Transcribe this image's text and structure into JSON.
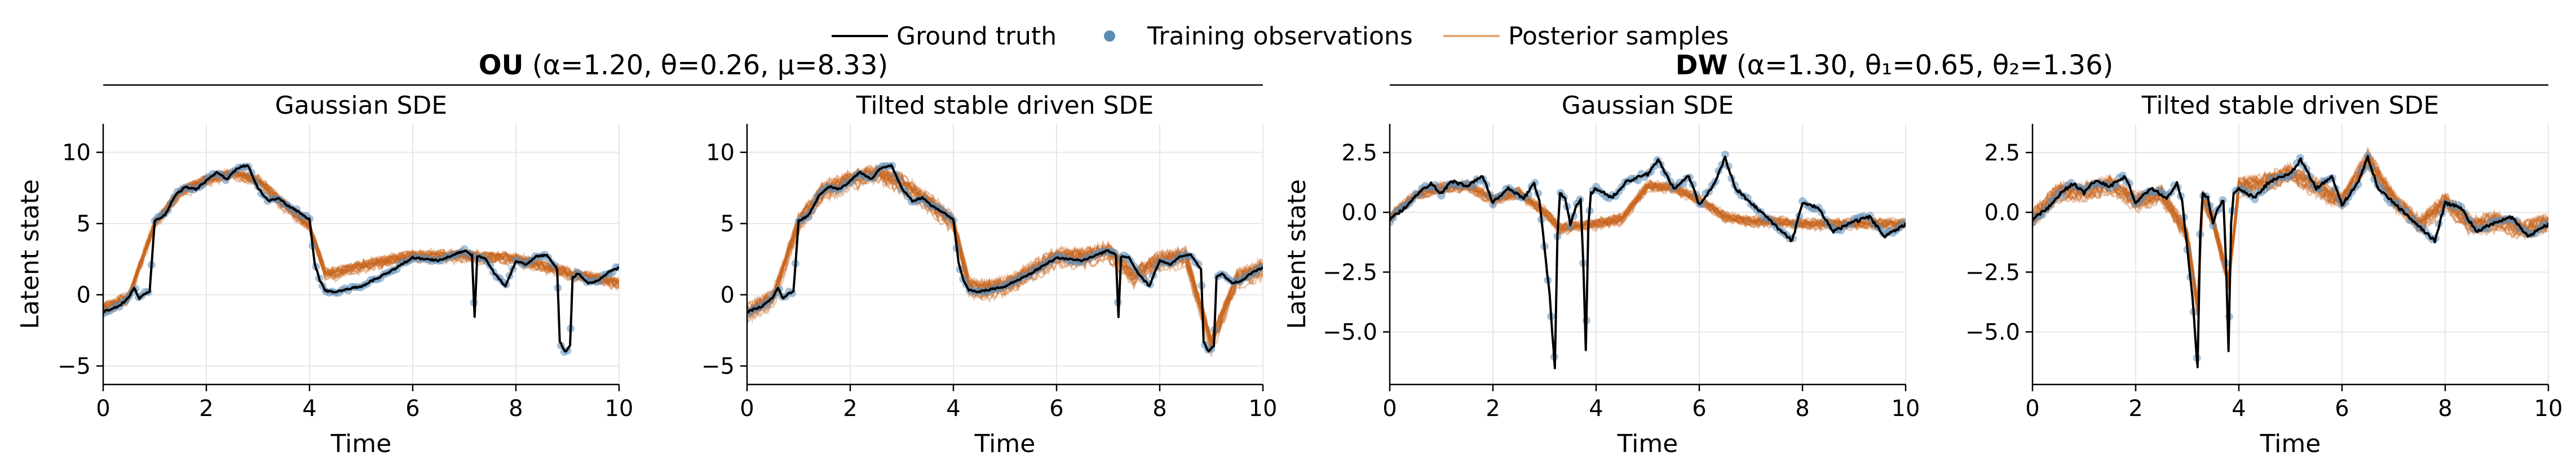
{
  "legend": {
    "ground_truth": "Ground truth",
    "observations": "Training observations",
    "posterior": "Posterior samples"
  },
  "colors": {
    "ground_truth": "#000000",
    "observations": "#5b8db8",
    "posterior": "#c8641e",
    "grid": "#e6e6e6"
  },
  "groups": [
    {
      "bold": "OU",
      "rest": " (α=1.20, θ=0.26, μ=8.33)"
    },
    {
      "bold": "DW",
      "rest": " (α=1.30, θ₁=0.65, θ₂=1.36)"
    }
  ],
  "chart_data": [
    {
      "type": "line",
      "title": "Gaussian SDE",
      "xlabel": "Time",
      "ylabel": "Latent state",
      "xlim": [
        0,
        10
      ],
      "ylim": [
        -6.3,
        12
      ],
      "xticks": [
        0,
        2,
        4,
        6,
        8,
        10
      ],
      "yticks": [
        -5,
        0,
        5,
        10
      ],
      "ytick_labels": [
        "−5",
        "0",
        "5",
        "10"
      ],
      "grid": true,
      "ground_truth": {
        "x": [
          0,
          0.3,
          0.5,
          0.6,
          0.7,
          0.8,
          0.9,
          1.0,
          1.2,
          1.4,
          1.6,
          1.8,
          2.0,
          2.2,
          2.4,
          2.6,
          2.8,
          3.0,
          3.2,
          3.4,
          3.6,
          3.8,
          4.0,
          4.1,
          4.2,
          4.3,
          4.5,
          5.0,
          5.5,
          6.0,
          6.5,
          7.0,
          7.15,
          7.2,
          7.25,
          7.4,
          7.6,
          7.8,
          8.0,
          8.2,
          8.4,
          8.6,
          8.8,
          8.85,
          8.95,
          9.05,
          9.1,
          9.2,
          9.4,
          9.6,
          9.8,
          10.0
        ],
        "y": [
          -1.2,
          -0.8,
          -0.2,
          0.5,
          -0.3,
          0.1,
          0.2,
          5.2,
          5.6,
          7.0,
          7.6,
          7.4,
          8.0,
          8.6,
          8.1,
          8.9,
          9.1,
          7.5,
          6.6,
          6.8,
          6.2,
          5.8,
          5.3,
          2.2,
          1.0,
          0.3,
          0.2,
          0.6,
          1.5,
          2.6,
          2.4,
          3.1,
          2.8,
          -1.6,
          2.7,
          2.6,
          1.4,
          0.6,
          2.4,
          2.1,
          2.7,
          2.8,
          1.8,
          -3.3,
          -4.0,
          -3.6,
          1.2,
          1.5,
          0.8,
          1.0,
          1.6,
          1.9
        ],
        "observations_x": [
          0,
          0.5,
          1.0,
          1.5,
          2.0,
          2.5,
          3.0,
          3.5,
          4.0,
          4.5,
          5.0,
          5.5,
          6.0,
          6.5,
          7.0,
          7.5,
          8.0,
          8.5,
          9.0,
          9.5,
          10.0
        ],
        "observations_y": [
          -1.2,
          -0.2,
          5.2,
          7.2,
          8.0,
          8.3,
          7.5,
          6.5,
          5.3,
          0.2,
          0.6,
          1.5,
          2.6,
          2.4,
          3.1,
          1.0,
          2.4,
          2.8,
          -3.8,
          1.0,
          1.9
        ]
      },
      "posterior_mean": {
        "x": [
          0,
          0.5,
          1.0,
          1.5,
          2.0,
          2.5,
          3.0,
          3.5,
          4.0,
          4.3,
          4.5,
          5.0,
          6.0,
          7.0,
          8.0,
          9.0,
          10.0
        ],
        "y": [
          -1.0,
          -0.2,
          5.0,
          7.2,
          8.0,
          8.5,
          8.0,
          6.3,
          4.8,
          1.5,
          1.5,
          2.0,
          2.7,
          2.7,
          2.5,
          1.5,
          0.8
        ]
      },
      "posterior_spread": 0.6
    },
    {
      "type": "line",
      "title": "Tilted stable driven SDE",
      "xlabel": "Time",
      "ylabel": "",
      "xlim": [
        0,
        10
      ],
      "ylim": [
        -6.3,
        12
      ],
      "xticks": [
        0,
        2,
        4,
        6,
        8,
        10
      ],
      "yticks": [
        -5,
        0,
        5,
        10
      ],
      "ytick_labels": [
        "−5",
        "0",
        "5",
        "10"
      ],
      "grid": true,
      "ground_truth": {
        "x": [
          0,
          0.3,
          0.5,
          0.6,
          0.7,
          0.8,
          0.9,
          1.0,
          1.2,
          1.4,
          1.6,
          1.8,
          2.0,
          2.2,
          2.4,
          2.6,
          2.8,
          3.0,
          3.2,
          3.4,
          3.6,
          3.8,
          4.0,
          4.1,
          4.2,
          4.3,
          4.5,
          5.0,
          5.5,
          6.0,
          6.5,
          7.0,
          7.15,
          7.2,
          7.25,
          7.4,
          7.6,
          7.8,
          8.0,
          8.2,
          8.4,
          8.6,
          8.8,
          8.85,
          8.95,
          9.05,
          9.1,
          9.2,
          9.4,
          9.6,
          9.8,
          10.0
        ],
        "y": [
          -1.2,
          -0.8,
          -0.2,
          0.5,
          -0.3,
          0.1,
          0.2,
          5.2,
          5.6,
          7.0,
          7.6,
          7.4,
          8.0,
          8.6,
          8.1,
          8.9,
          9.1,
          7.5,
          6.6,
          6.8,
          6.2,
          5.8,
          5.3,
          2.2,
          1.0,
          0.3,
          0.2,
          0.6,
          1.5,
          2.6,
          2.4,
          3.1,
          2.8,
          -1.6,
          2.7,
          2.6,
          1.4,
          0.6,
          2.4,
          2.1,
          2.7,
          2.8,
          1.8,
          -3.3,
          -4.0,
          -3.6,
          1.2,
          1.5,
          0.8,
          1.0,
          1.6,
          1.9
        ],
        "observations_x": [
          0,
          0.5,
          1.0,
          1.5,
          2.0,
          2.5,
          3.0,
          3.5,
          4.0,
          4.5,
          5.0,
          5.5,
          6.0,
          6.5,
          7.0,
          7.5,
          8.0,
          8.5,
          9.0,
          9.5,
          10.0
        ],
        "observations_y": [
          -1.2,
          -0.2,
          5.2,
          7.2,
          8.0,
          8.3,
          7.5,
          6.5,
          5.3,
          0.2,
          0.6,
          1.5,
          2.6,
          2.4,
          3.1,
          1.0,
          2.4,
          2.8,
          -3.8,
          1.0,
          1.9
        ]
      },
      "posterior_mean": {
        "x": [
          0,
          0.5,
          1.0,
          1.5,
          2.0,
          2.5,
          3.0,
          3.5,
          4.0,
          4.3,
          4.5,
          5.0,
          5.5,
          6.0,
          6.5,
          7.0,
          7.5,
          8.0,
          8.5,
          9.0,
          9.5,
          10.0
        ],
        "y": [
          -1.2,
          -0.3,
          5.0,
          7.3,
          8.0,
          8.5,
          7.8,
          6.5,
          5.0,
          0.6,
          0.3,
          0.6,
          1.6,
          2.6,
          2.6,
          3.0,
          1.2,
          2.4,
          2.6,
          -3.5,
          1.1,
          1.8
        ]
      },
      "posterior_spread": 0.9
    },
    {
      "type": "line",
      "title": "Gaussian SDE",
      "xlabel": "Time",
      "ylabel": "Latent state",
      "xlim": [
        0,
        10
      ],
      "ylim": [
        -7.2,
        3.7
      ],
      "xticks": [
        0,
        2,
        4,
        6,
        8,
        10
      ],
      "yticks": [
        -5,
        -2.5,
        0,
        2.5
      ],
      "ytick_labels": [
        "−5.0",
        "−2.5",
        "0.0",
        "2.5"
      ],
      "grid": true,
      "ground_truth": {
        "x": [
          0,
          0.3,
          0.6,
          0.8,
          1.0,
          1.2,
          1.5,
          1.8,
          2.0,
          2.3,
          2.6,
          2.8,
          2.9,
          3.0,
          3.1,
          3.2,
          3.25,
          3.3,
          3.4,
          3.5,
          3.6,
          3.7,
          3.75,
          3.8,
          3.85,
          3.9,
          4.0,
          4.3,
          4.6,
          5.0,
          5.2,
          5.5,
          5.8,
          6.0,
          6.3,
          6.5,
          6.7,
          7.0,
          7.3,
          7.6,
          7.8,
          8.0,
          8.3,
          8.6,
          9.0,
          9.3,
          9.6,
          10.0
        ],
        "y": [
          -0.3,
          0.2,
          0.9,
          1.2,
          0.8,
          1.3,
          1.1,
          1.5,
          0.4,
          1.0,
          0.6,
          1.2,
          0.5,
          -1.5,
          -3.5,
          -6.5,
          -1.0,
          0.8,
          0.6,
          -0.5,
          0.2,
          0.5,
          -2.0,
          -5.8,
          -0.5,
          0.8,
          1.0,
          0.6,
          1.3,
          1.6,
          2.2,
          1.0,
          1.5,
          0.3,
          1.2,
          2.3,
          1.0,
          0.4,
          -0.2,
          -0.8,
          -1.2,
          0.4,
          0.2,
          -0.8,
          -0.4,
          -0.2,
          -1.0,
          -0.5
        ],
        "observations_x": [
          0,
          0.5,
          1.0,
          1.5,
          2.0,
          2.5,
          3.0,
          3.5,
          4.0,
          4.5,
          5.0,
          5.5,
          6.0,
          6.5,
          7.0,
          7.5,
          8.0,
          8.5,
          9.0,
          9.5,
          10.0
        ],
        "observations_y": [
          -0.3,
          0.8,
          0.8,
          1.1,
          0.4,
          0.7,
          -1.5,
          -0.5,
          1.0,
          1.2,
          1.6,
          1.0,
          0.3,
          2.2,
          0.4,
          -0.7,
          0.4,
          -0.7,
          -0.4,
          -0.9,
          -0.5
        ]
      },
      "posterior_mean": {
        "x": [
          0,
          0.5,
          1.0,
          1.5,
          2.0,
          2.5,
          3.0,
          3.3,
          3.6,
          4.0,
          4.5,
          5.0,
          5.5,
          6.0,
          6.5,
          7.0,
          7.5,
          8.0,
          9.0,
          10.0
        ],
        "y": [
          -0.2,
          0.7,
          1.0,
          1.1,
          0.5,
          0.8,
          0.0,
          -0.7,
          -0.6,
          -0.5,
          -0.3,
          1.1,
          1.0,
          0.5,
          -0.2,
          -0.4,
          -0.4,
          -0.5,
          -0.5,
          -0.5
        ]
      },
      "posterior_spread": 0.3
    },
    {
      "type": "line",
      "title": "Tilted stable driven SDE",
      "xlabel": "Time",
      "ylabel": "",
      "xlim": [
        0,
        10
      ],
      "ylim": [
        -7.2,
        3.7
      ],
      "xticks": [
        0,
        2,
        4,
        6,
        8,
        10
      ],
      "yticks": [
        -5,
        -2.5,
        0,
        2.5
      ],
      "ytick_labels": [
        "−5.0",
        "−2.5",
        "0.0",
        "2.5"
      ],
      "grid": true,
      "ground_truth": {
        "x": [
          0,
          0.3,
          0.6,
          0.8,
          1.0,
          1.2,
          1.5,
          1.8,
          2.0,
          2.3,
          2.6,
          2.8,
          2.9,
          3.0,
          3.1,
          3.2,
          3.25,
          3.3,
          3.4,
          3.5,
          3.6,
          3.7,
          3.75,
          3.8,
          3.85,
          3.9,
          4.0,
          4.3,
          4.6,
          5.0,
          5.2,
          5.5,
          5.8,
          6.0,
          6.3,
          6.5,
          6.7,
          7.0,
          7.3,
          7.6,
          7.8,
          8.0,
          8.3,
          8.6,
          9.0,
          9.3,
          9.6,
          10.0
        ],
        "y": [
          -0.3,
          0.2,
          0.9,
          1.2,
          0.8,
          1.3,
          1.1,
          1.5,
          0.4,
          1.0,
          0.6,
          1.2,
          0.5,
          -1.5,
          -3.5,
          -6.5,
          -1.0,
          0.8,
          0.6,
          -0.5,
          0.2,
          0.5,
          -2.0,
          -5.8,
          -0.5,
          0.8,
          1.0,
          0.6,
          1.3,
          1.6,
          2.2,
          1.0,
          1.5,
          0.3,
          1.2,
          2.3,
          1.0,
          0.4,
          -0.2,
          -0.8,
          -1.2,
          0.4,
          0.2,
          -0.8,
          -0.4,
          -0.2,
          -1.0,
          -0.5
        ],
        "observations_x": [
          0,
          0.5,
          1.0,
          1.5,
          2.0,
          2.5,
          3.0,
          3.5,
          4.0,
          4.5,
          5.0,
          5.5,
          6.0,
          6.5,
          7.0,
          7.5,
          8.0,
          8.5,
          9.0,
          9.5,
          10.0
        ],
        "observations_y": [
          -0.3,
          0.8,
          0.8,
          1.1,
          0.4,
          0.7,
          -1.5,
          -0.5,
          1.0,
          1.2,
          1.6,
          1.0,
          0.3,
          2.2,
          0.4,
          -0.7,
          0.4,
          -0.7,
          -0.4,
          -0.9,
          -0.5
        ]
      },
      "posterior_mean": {
        "x": [
          0,
          0.5,
          1.0,
          1.5,
          2.0,
          2.5,
          3.0,
          3.2,
          3.3,
          3.5,
          3.8,
          4.0,
          4.5,
          5.0,
          5.5,
          6.0,
          6.5,
          7.0,
          7.5,
          8.0,
          8.5,
          9.0,
          9.5,
          10.0
        ],
        "y": [
          -0.3,
          0.8,
          0.8,
          1.1,
          0.4,
          0.7,
          -1.0,
          -4.0,
          0.6,
          -0.4,
          -3.0,
          1.0,
          1.2,
          1.6,
          1.0,
          0.4,
          2.2,
          0.5,
          -0.6,
          0.4,
          -0.6,
          -0.4,
          -0.8,
          -0.5
        ]
      },
      "posterior_spread": 0.5
    }
  ]
}
